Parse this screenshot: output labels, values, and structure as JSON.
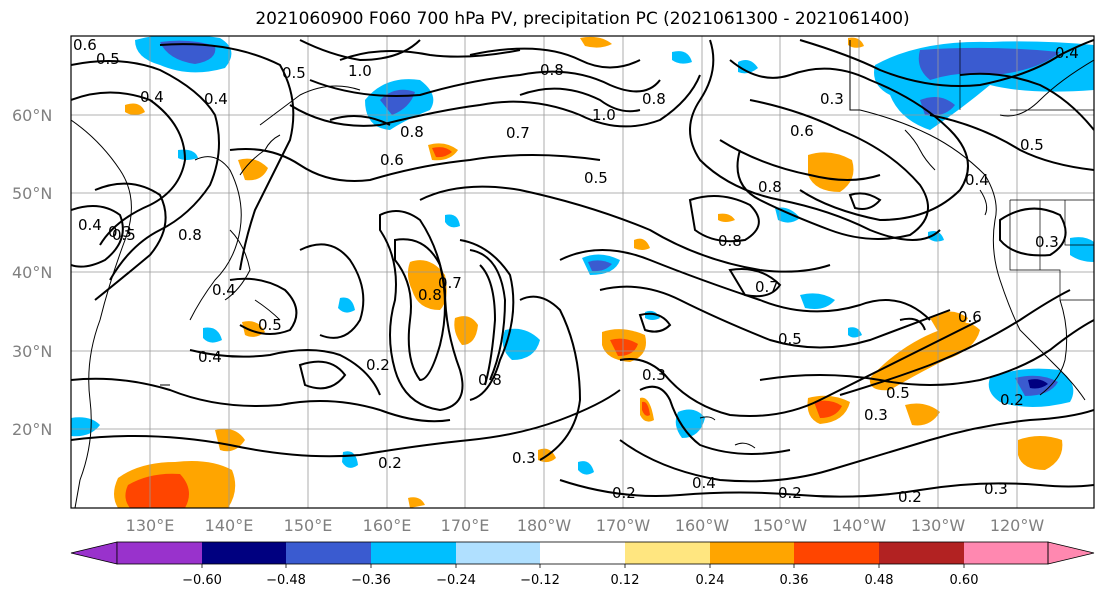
{
  "title": "2021060900 F060 700 hPa PV, precipitation PC (2021061300 - 2021061400)",
  "lat_ticks": [
    "60°N",
    "50°N",
    "40°N",
    "30°N",
    "20°N"
  ],
  "lon_ticks": [
    "130°E",
    "140°E",
    "150°E",
    "160°E",
    "170°E",
    "180°W",
    "170°W",
    "160°W",
    "150°W",
    "140°W",
    "130°W",
    "120°W"
  ],
  "contour_labels": [
    "0.6",
    "0.5",
    "0.4",
    "0.4",
    "0.5",
    "1.0",
    "0.8",
    "1.0",
    "0.8",
    "0.7",
    "0.6",
    "0.8",
    "0.5",
    "0.3",
    "0.6",
    "0.8",
    "0.4",
    "0.5",
    "0.4",
    "0.3",
    "0.5",
    "0.8",
    "0.4",
    "0.8",
    "0.4",
    "0.3",
    "0.5",
    "0.8",
    "0.7",
    "0.8",
    "0.2",
    "0.7",
    "0.5",
    "0.3",
    "0.6",
    "0.5",
    "0.3",
    "0.2",
    "0.2",
    "0.3",
    "0.2",
    "0.4",
    "0.2",
    "0.2",
    "0.3",
    "0.4"
  ],
  "colorbar": {
    "ticks": [
      "−0.60",
      "−0.48",
      "−0.36",
      "−0.24",
      "−0.12",
      "0.12",
      "0.24",
      "0.36",
      "0.48",
      "0.60"
    ],
    "colors": [
      "#9932cc",
      "#000080",
      "#3a5bd0",
      "#00bfff",
      "#b0e0ff",
      "#ffffff",
      "#ffe680",
      "#ffa500",
      "#ff4500",
      "#b22222",
      "#ff88b0"
    ]
  }
}
